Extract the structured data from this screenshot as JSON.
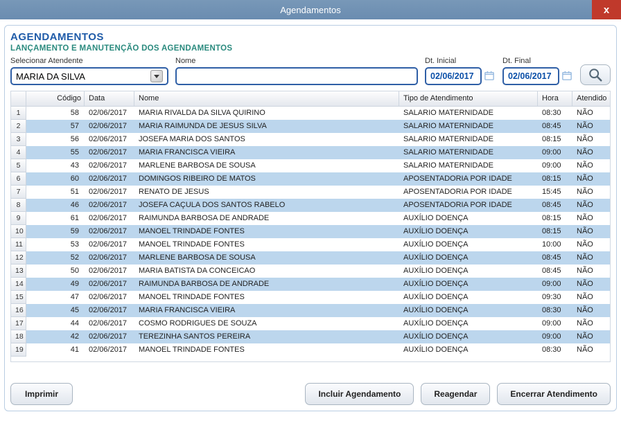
{
  "window": {
    "title": "Agendamentos",
    "close": "x"
  },
  "header": {
    "title": "AGENDAMENTOS",
    "subtitle": "LANÇAMENTO E MANUTENÇÃO DOS AGENDAMENTOS"
  },
  "filters": {
    "atendente_label": "Selecionar Atendente",
    "atendente_value": "MARIA DA SILVA",
    "nome_label": "Nome",
    "nome_value": "",
    "dt_inicial_label": "Dt. Inicial",
    "dt_inicial_value": "02/06/2017",
    "dt_final_label": "Dt. Final",
    "dt_final_value": "02/06/2017"
  },
  "grid": {
    "columns": {
      "codigo": "Código",
      "data": "Data",
      "nome": "Nome",
      "tipo": "Tipo de Atendimento",
      "hora": "Hora",
      "atendido": "Atendido"
    },
    "rows": [
      {
        "n": "1",
        "codigo": "58",
        "data": "02/06/2017",
        "nome": "MARIA RIVALDA DA SILVA QUIRINO",
        "tipo": "SALARIO MATERNIDADE",
        "hora": "08:30",
        "atendido": "NÃO"
      },
      {
        "n": "2",
        "codigo": "57",
        "data": "02/06/2017",
        "nome": "MARIA RAIMUNDA DE JESUS SILVA",
        "tipo": "SALARIO MATERNIDADE",
        "hora": "08:45",
        "atendido": "NÃO"
      },
      {
        "n": "3",
        "codigo": "56",
        "data": "02/06/2017",
        "nome": "JOSEFA MARIA DOS SANTOS",
        "tipo": "SALARIO MATERNIDADE",
        "hora": "08:15",
        "atendido": "NÃO"
      },
      {
        "n": "4",
        "codigo": "55",
        "data": "02/06/2017",
        "nome": "MARIA FRANCISCA VIEIRA",
        "tipo": "SALARIO MATERNIDADE",
        "hora": "09:00",
        "atendido": "NÃO"
      },
      {
        "n": "5",
        "codigo": "43",
        "data": "02/06/2017",
        "nome": "MARLENE BARBOSA DE SOUSA",
        "tipo": "SALARIO MATERNIDADE",
        "hora": "09:00",
        "atendido": "NÃO"
      },
      {
        "n": "6",
        "codigo": "60",
        "data": "02/06/2017",
        "nome": "DOMINGOS RIBEIRO DE MATOS",
        "tipo": "APOSENTADORIA POR IDADE",
        "hora": "08:15",
        "atendido": "NÃO"
      },
      {
        "n": "7",
        "codigo": "51",
        "data": "02/06/2017",
        "nome": "RENATO DE JESUS",
        "tipo": "APOSENTADORIA POR IDADE",
        "hora": "15:45",
        "atendido": "NÃO"
      },
      {
        "n": "8",
        "codigo": "46",
        "data": "02/06/2017",
        "nome": "JOSEFA CAÇULA DOS SANTOS RABELO",
        "tipo": "APOSENTADORIA POR IDADE",
        "hora": "08:45",
        "atendido": "NÃO"
      },
      {
        "n": "9",
        "codigo": "61",
        "data": "02/06/2017",
        "nome": "RAIMUNDA BARBOSA DE ANDRADE",
        "tipo": "AUXÍLIO DOENÇA",
        "hora": "08:15",
        "atendido": "NÃO"
      },
      {
        "n": "10",
        "codigo": "59",
        "data": "02/06/2017",
        "nome": "MANOEL TRINDADE FONTES",
        "tipo": "AUXÍLIO DOENÇA",
        "hora": "08:15",
        "atendido": "NÃO"
      },
      {
        "n": "11",
        "codigo": "53",
        "data": "02/06/2017",
        "nome": "MANOEL TRINDADE FONTES",
        "tipo": "AUXÍLIO DOENÇA",
        "hora": "10:00",
        "atendido": "NÃO"
      },
      {
        "n": "12",
        "codigo": "52",
        "data": "02/06/2017",
        "nome": "MARLENE BARBOSA DE SOUSA",
        "tipo": "AUXÍLIO DOENÇA",
        "hora": "08:45",
        "atendido": "NÃO"
      },
      {
        "n": "13",
        "codigo": "50",
        "data": "02/06/2017",
        "nome": "MARIA BATISTA DA CONCEICAO",
        "tipo": "AUXÍLIO DOENÇA",
        "hora": "08:45",
        "atendido": "NÃO"
      },
      {
        "n": "14",
        "codigo": "49",
        "data": "02/06/2017",
        "nome": "RAIMUNDA BARBOSA DE ANDRADE",
        "tipo": "AUXÍLIO DOENÇA",
        "hora": "09:00",
        "atendido": "NÃO"
      },
      {
        "n": "15",
        "codigo": "47",
        "data": "02/06/2017",
        "nome": "MANOEL TRINDADE FONTES",
        "tipo": "AUXÍLIO DOENÇA",
        "hora": "09:30",
        "atendido": "NÃO"
      },
      {
        "n": "16",
        "codigo": "45",
        "data": "02/06/2017",
        "nome": "MARIA FRANCISCA VIEIRA",
        "tipo": "AUXÍLIO DOENÇA",
        "hora": "08:30",
        "atendido": "NÃO"
      },
      {
        "n": "17",
        "codigo": "44",
        "data": "02/06/2017",
        "nome": "COSMO RODRIGUES DE SOUZA",
        "tipo": "AUXÍLIO DOENÇA",
        "hora": "09:00",
        "atendido": "NÃO"
      },
      {
        "n": "18",
        "codigo": "42",
        "data": "02/06/2017",
        "nome": "TEREZINHA SANTOS PEREIRA",
        "tipo": "AUXÍLIO DOENÇA",
        "hora": "09:00",
        "atendido": "NÃO"
      },
      {
        "n": "19",
        "codigo": "41",
        "data": "02/06/2017",
        "nome": "MANOEL TRINDADE FONTES",
        "tipo": "AUXÍLIO DOENÇA",
        "hora": "08:30",
        "atendido": "NÃO"
      }
    ]
  },
  "buttons": {
    "imprimir": "Imprimir",
    "incluir": "Incluir Agendamento",
    "reagendar": "Reagendar",
    "encerrar": "Encerrar Atendimento"
  },
  "style": {
    "titlebar_bg_top": "#7898b8",
    "titlebar_bg_bottom": "#6a8cb0",
    "close_bg": "#c0392b",
    "h1_color": "#1f5ba8",
    "h2_color": "#2a8a7e",
    "border_blue": "#2f5fa6",
    "row_alt_bg": "#bcd6ed",
    "panel_border": "#b9cde2"
  }
}
